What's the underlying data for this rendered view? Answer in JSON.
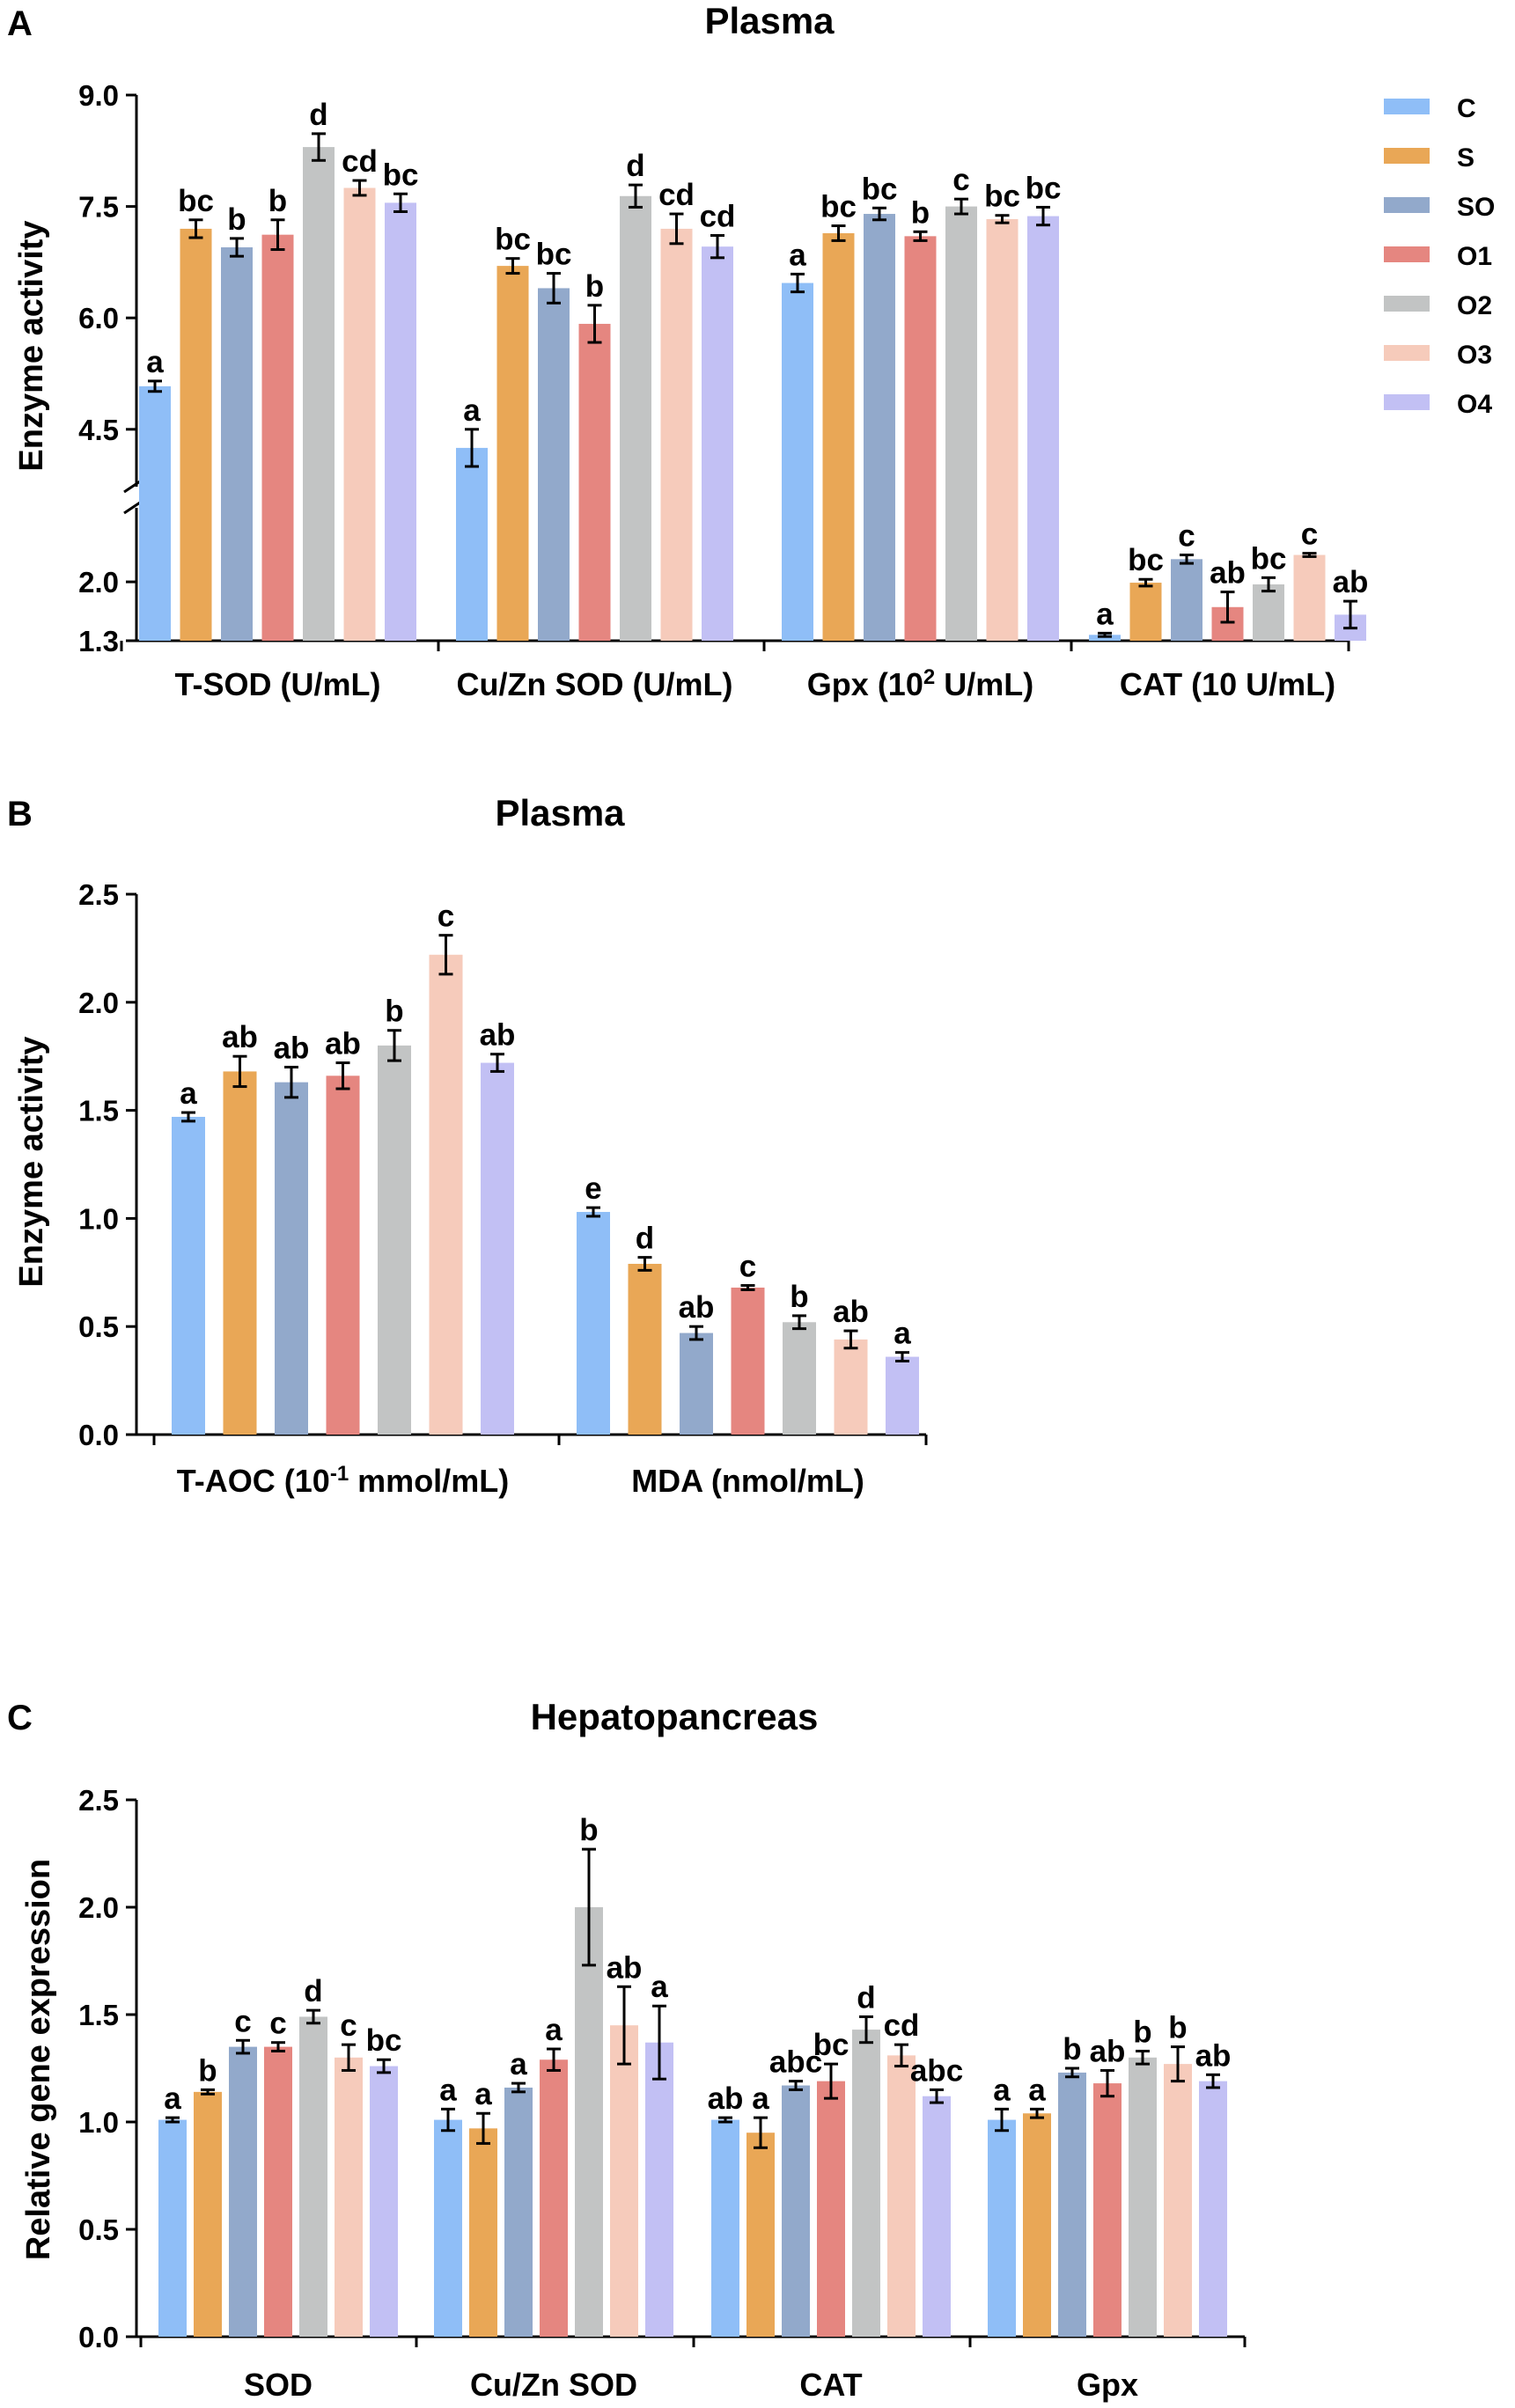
{
  "colors": {
    "C": "#8fbef7",
    "S": "#e9a756",
    "SO": "#92a9cb",
    "O1": "#e58680",
    "O2": "#c2c4c4",
    "O3": "#f6cbbb",
    "O4": "#c2c0f4"
  },
  "legend": [
    "C",
    "S",
    "SO",
    "O1",
    "O2",
    "O3",
    "O4"
  ],
  "chart_data": [
    {
      "panel": "A",
      "type": "bar",
      "title": "Plasma",
      "ylabel": "Enzyme activity",
      "ylim": [
        1.3,
        9.0
      ],
      "axis_break": [
        2.2,
        4.0
      ],
      "yticks": [
        "1.3",
        "2.0",
        "4.5",
        "6.0",
        "7.5",
        "9.0"
      ],
      "categories": [
        "T-SOD (U/mL)",
        "Cu/Zn SOD (U/mL)",
        "Gpx (10",
        "CAT (10 U/mL)"
      ],
      "category_extras": {
        "2": {
          "sup": "2",
          "rest": " U/mL)"
        }
      },
      "series": [
        {
          "name": "C",
          "values": [
            5.08,
            4.25,
            6.47,
            1.37
          ],
          "errors": [
            0.07,
            0.25,
            0.12,
            0.02
          ],
          "letters": [
            "a",
            "a",
            "a",
            "a"
          ]
        },
        {
          "name": "S",
          "values": [
            7.2,
            6.7,
            7.14,
            1.99
          ],
          "errors": [
            0.12,
            0.1,
            0.1,
            0.04
          ],
          "letters": [
            "bc",
            "bc",
            "bc",
            "bc"
          ]
        },
        {
          "name": "SO",
          "values": [
            6.95,
            6.4,
            7.4,
            2.27
          ],
          "errors": [
            0.12,
            0.2,
            0.08,
            0.05
          ],
          "letters": [
            "b",
            "bc",
            "bc",
            "c"
          ]
        },
        {
          "name": "O1",
          "values": [
            7.12,
            5.92,
            7.1,
            1.7
          ],
          "errors": [
            0.2,
            0.25,
            0.06,
            0.18
          ],
          "letters": [
            "b",
            "b",
            "b",
            "ab"
          ]
        },
        {
          "name": "O2",
          "values": [
            8.3,
            7.64,
            7.5,
            1.97
          ],
          "errors": [
            0.18,
            0.15,
            0.1,
            0.08
          ],
          "letters": [
            "d",
            "d",
            "c",
            "bc"
          ]
        },
        {
          "name": "O3",
          "values": [
            7.75,
            7.2,
            7.33,
            2.32
          ],
          "errors": [
            0.1,
            0.2,
            0.05,
            0.02
          ],
          "letters": [
            "cd",
            "cd",
            "bc",
            "c"
          ]
        },
        {
          "name": "O4",
          "values": [
            7.55,
            6.96,
            7.37,
            1.61
          ],
          "errors": [
            0.12,
            0.15,
            0.12,
            0.16
          ],
          "letters": [
            "bc",
            "cd",
            "bc",
            "ab"
          ]
        }
      ]
    },
    {
      "panel": "B",
      "type": "bar",
      "title": "Plasma",
      "ylabel": "Enzyme activity",
      "ylim": [
        0,
        2.5
      ],
      "yticks": [
        "0.0",
        "0.5",
        "1.0",
        "1.5",
        "2.0",
        "2.5"
      ],
      "categories": [
        "T-AOC (10",
        "MDA (nmol/mL)"
      ],
      "category_extras": {
        "0": {
          "sup": "-1",
          "rest": " mmol/mL)"
        }
      },
      "series": [
        {
          "name": "C",
          "values": [
            1.47,
            1.03
          ],
          "errors": [
            0.02,
            0.02
          ],
          "letters": [
            "a",
            "e"
          ]
        },
        {
          "name": "S",
          "values": [
            1.68,
            0.79
          ],
          "errors": [
            0.07,
            0.03
          ],
          "letters": [
            "ab",
            "d"
          ]
        },
        {
          "name": "SO",
          "values": [
            1.63,
            0.47
          ],
          "errors": [
            0.07,
            0.03
          ],
          "letters": [
            "ab",
            "ab"
          ]
        },
        {
          "name": "O1",
          "values": [
            1.66,
            0.68
          ],
          "errors": [
            0.06,
            0.01
          ],
          "letters": [
            "ab",
            "c"
          ]
        },
        {
          "name": "O2",
          "values": [
            1.8,
            0.52
          ],
          "errors": [
            0.07,
            0.03
          ],
          "letters": [
            "b",
            "b"
          ]
        },
        {
          "name": "O3",
          "values": [
            2.22,
            0.44
          ],
          "errors": [
            0.09,
            0.04
          ],
          "letters": [
            "c",
            "ab"
          ]
        },
        {
          "name": "O4",
          "values": [
            1.72,
            0.36
          ],
          "errors": [
            0.04,
            0.02
          ],
          "letters": [
            "ab",
            "a"
          ]
        }
      ]
    },
    {
      "panel": "C",
      "type": "bar",
      "title": "Hepatopancreas",
      "ylabel": "Relative gene expression",
      "ylim": [
        0,
        2.5
      ],
      "yticks": [
        "0.0",
        "0.5",
        "1.0",
        "1.5",
        "2.0",
        "2.5"
      ],
      "categories": [
        "SOD",
        "Cu/Zn SOD",
        "CAT",
        "Gpx"
      ],
      "category_extras": {},
      "series": [
        {
          "name": "C",
          "values": [
            1.01,
            1.01,
            1.01,
            1.01
          ],
          "errors": [
            0.01,
            0.05,
            0.01,
            0.05
          ],
          "letters": [
            "a",
            "a",
            "ab",
            "a"
          ]
        },
        {
          "name": "S",
          "values": [
            1.14,
            0.97,
            0.95,
            1.04
          ],
          "errors": [
            0.01,
            0.07,
            0.07,
            0.02
          ],
          "letters": [
            "b",
            "a",
            "a",
            "a"
          ]
        },
        {
          "name": "SO",
          "values": [
            1.35,
            1.16,
            1.17,
            1.23
          ],
          "errors": [
            0.03,
            0.02,
            0.02,
            0.02
          ],
          "letters": [
            "c",
            "a",
            "abc",
            "b"
          ]
        },
        {
          "name": "O1",
          "values": [
            1.35,
            1.29,
            1.19,
            1.18
          ],
          "errors": [
            0.02,
            0.05,
            0.08,
            0.06
          ],
          "letters": [
            "c",
            "a",
            "bc",
            "ab"
          ]
        },
        {
          "name": "O2",
          "values": [
            1.49,
            2.0,
            1.43,
            1.3
          ],
          "errors": [
            0.03,
            0.27,
            0.06,
            0.03
          ],
          "letters": [
            "d",
            "b",
            "d",
            "b"
          ]
        },
        {
          "name": "O3",
          "values": [
            1.3,
            1.45,
            1.31,
            1.27
          ],
          "errors": [
            0.06,
            0.18,
            0.05,
            0.08
          ],
          "letters": [
            "c",
            "ab",
            "cd",
            "b"
          ]
        },
        {
          "name": "O4",
          "values": [
            1.26,
            1.37,
            1.12,
            1.19
          ],
          "errors": [
            0.03,
            0.17,
            0.03,
            0.03
          ],
          "letters": [
            "bc",
            "a",
            "abc",
            "ab"
          ]
        }
      ]
    }
  ]
}
